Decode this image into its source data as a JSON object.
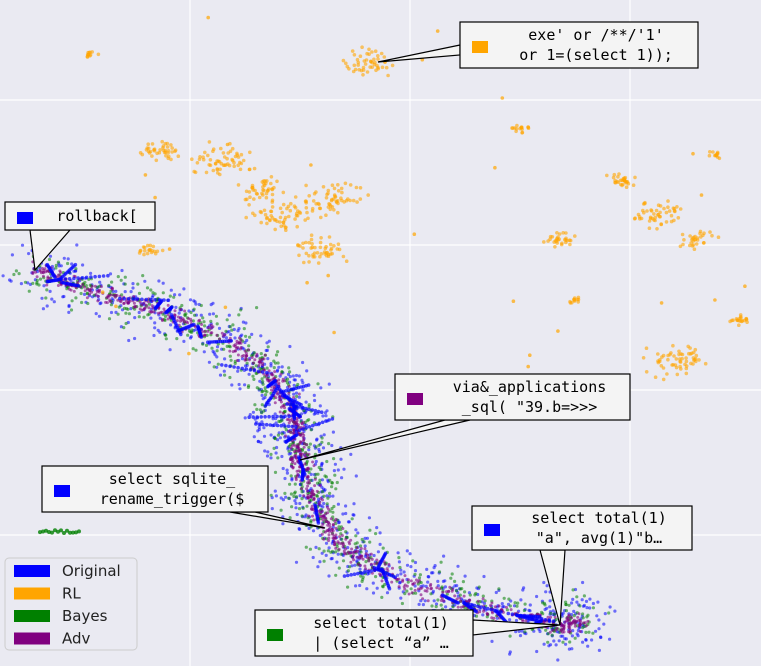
{
  "chart_data": {
    "type": "scatter",
    "series": [
      {
        "name": "Original",
        "color": "#0000ff"
      },
      {
        "name": "RL",
        "color": "#ffa500"
      },
      {
        "name": "Bayes",
        "color": "#008000"
      },
      {
        "name": "Adv",
        "color": "#800080"
      }
    ],
    "annotations": [
      {
        "series": 1,
        "lines": [
          "exe'  or /**/'1'",
          "or 1=(select 1));"
        ]
      },
      {
        "series": 0,
        "lines": [
          "rollback["
        ]
      },
      {
        "series": 3,
        "lines": [
          "via&_applications",
          "_sql( \"39.b=>>>"
        ]
      },
      {
        "series": 0,
        "lines": [
          "select sqlite_",
          "rename_trigger($"
        ]
      },
      {
        "series": 0,
        "lines": [
          "select total(1)",
          "\"a\", avg(1)\"b…"
        ]
      },
      {
        "series": 2,
        "lines": [
          "select total(1)",
          "| (select “a” …"
        ]
      }
    ],
    "legend": "lower left",
    "grid": true
  }
}
